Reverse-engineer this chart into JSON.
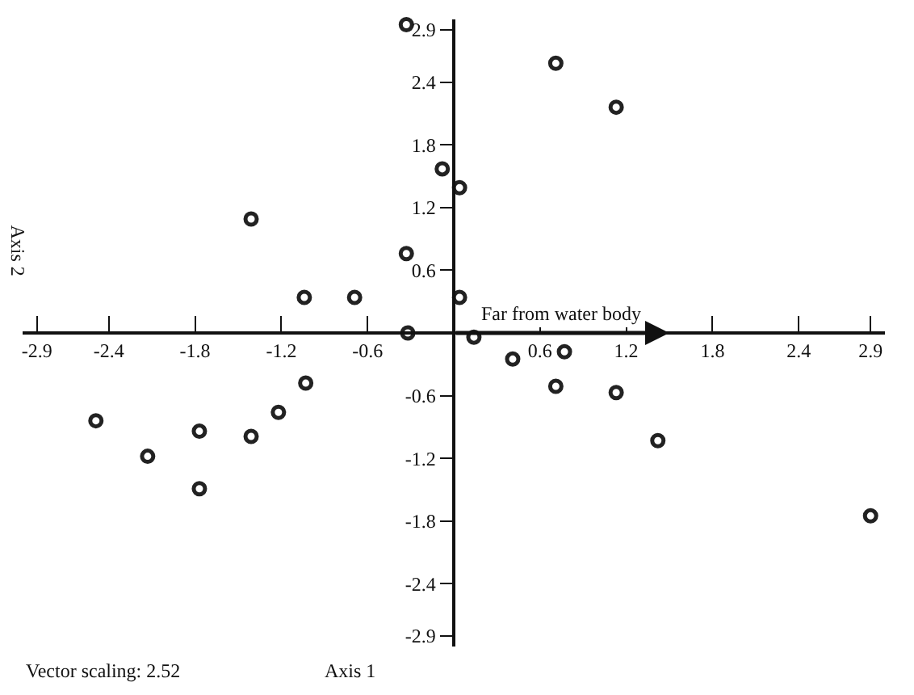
{
  "chart_data": {
    "type": "scatter",
    "xlabel": "Axis 1",
    "ylabel": "Axis 2",
    "annotations": [
      "Vector scaling: 2.52",
      "Far from water body"
    ],
    "series": [
      {
        "color": "#222222",
        "x": [
          -0.33,
          0.71,
          1.13,
          -0.08,
          0.04,
          -1.41,
          -0.33,
          -1.04,
          -0.69,
          0.04,
          -0.32,
          0.14,
          0.41,
          0.77,
          0.71,
          1.13,
          1.42,
          2.9,
          -2.49,
          -2.13,
          -1.77,
          -1.77,
          -1.41,
          -1.22,
          -1.03
        ],
        "values": [
          2.95,
          2.58,
          2.16,
          1.57,
          1.39,
          1.09,
          0.76,
          0.34,
          0.34,
          0.34,
          0,
          -0.04,
          -0.25,
          -0.18,
          -0.51,
          -0.57,
          -1.03,
          -1.75,
          -0.84,
          -1.18,
          -0.94,
          -1.49,
          -0.99,
          -0.76,
          -0.48
        ]
      }
    ],
    "xlim": [
      -3.0,
      3.0
    ],
    "ylim": [
      -3.0,
      3.0
    ],
    "xticks": [
      -2.9,
      -2.4,
      -1.8,
      -1.2,
      -0.6,
      0.6,
      1.2,
      1.8,
      2.4,
      2.9
    ],
    "yticks": [
      -2.9,
      -2.4,
      -1.8,
      -1.2,
      -0.6,
      0.6,
      1.2,
      1.8,
      2.4,
      2.9
    ],
    "grid": false,
    "marker": "circle"
  }
}
